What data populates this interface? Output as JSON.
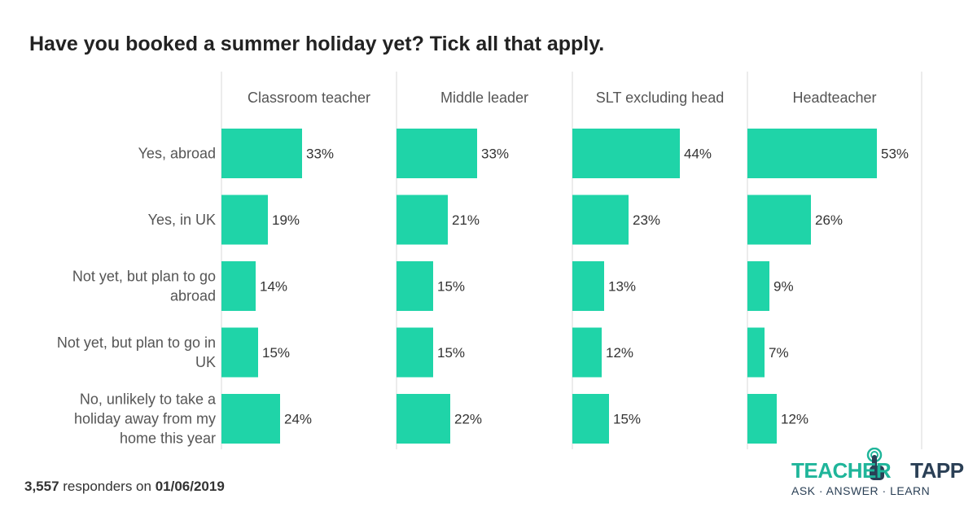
{
  "title": "Have you booked a summer holiday yet? Tick all that apply.",
  "footer": {
    "count": "3,557",
    "middle": " responders on ",
    "date": "01/06/2019"
  },
  "logo": {
    "word1": "TEACHER",
    "word2": "TAPP",
    "tagline": "ASK · ANSWER · LEARN"
  },
  "colors": {
    "bar": "#1fd4a8",
    "gridline": "#d9d9d9",
    "text": "#333333",
    "label": "#555555"
  },
  "chart_data": {
    "type": "bar",
    "orientation": "horizontal",
    "categories": [
      [
        "Yes, abroad"
      ],
      [
        "Yes, in UK"
      ],
      [
        "Not yet, but plan to go",
        "abroad"
      ],
      [
        "Not yet, but plan to go in",
        "UK"
      ],
      [
        "No, unlikely to take a",
        "holiday away from my",
        "home this year"
      ]
    ],
    "panels": [
      {
        "name": "Classroom teacher",
        "values": [
          33,
          19,
          14,
          15,
          24
        ],
        "labels": [
          "33%",
          "19%",
          "14%",
          "15%",
          "24%"
        ]
      },
      {
        "name": "Middle leader",
        "values": [
          33,
          21,
          15,
          15,
          22
        ],
        "labels": [
          "33%",
          "21%",
          "15%",
          "15%",
          "22%"
        ]
      },
      {
        "name": "SLT excluding head",
        "values": [
          44,
          23,
          13,
          12,
          15
        ],
        "labels": [
          "44%",
          "23%",
          "13%",
          "12%",
          "15%"
        ]
      },
      {
        "name": "Headteacher",
        "values": [
          53,
          26,
          9,
          7,
          12
        ],
        "labels": [
          "53%",
          "26%",
          "9%",
          "7%",
          "12%"
        ]
      }
    ],
    "unit": "%",
    "grid": false
  }
}
